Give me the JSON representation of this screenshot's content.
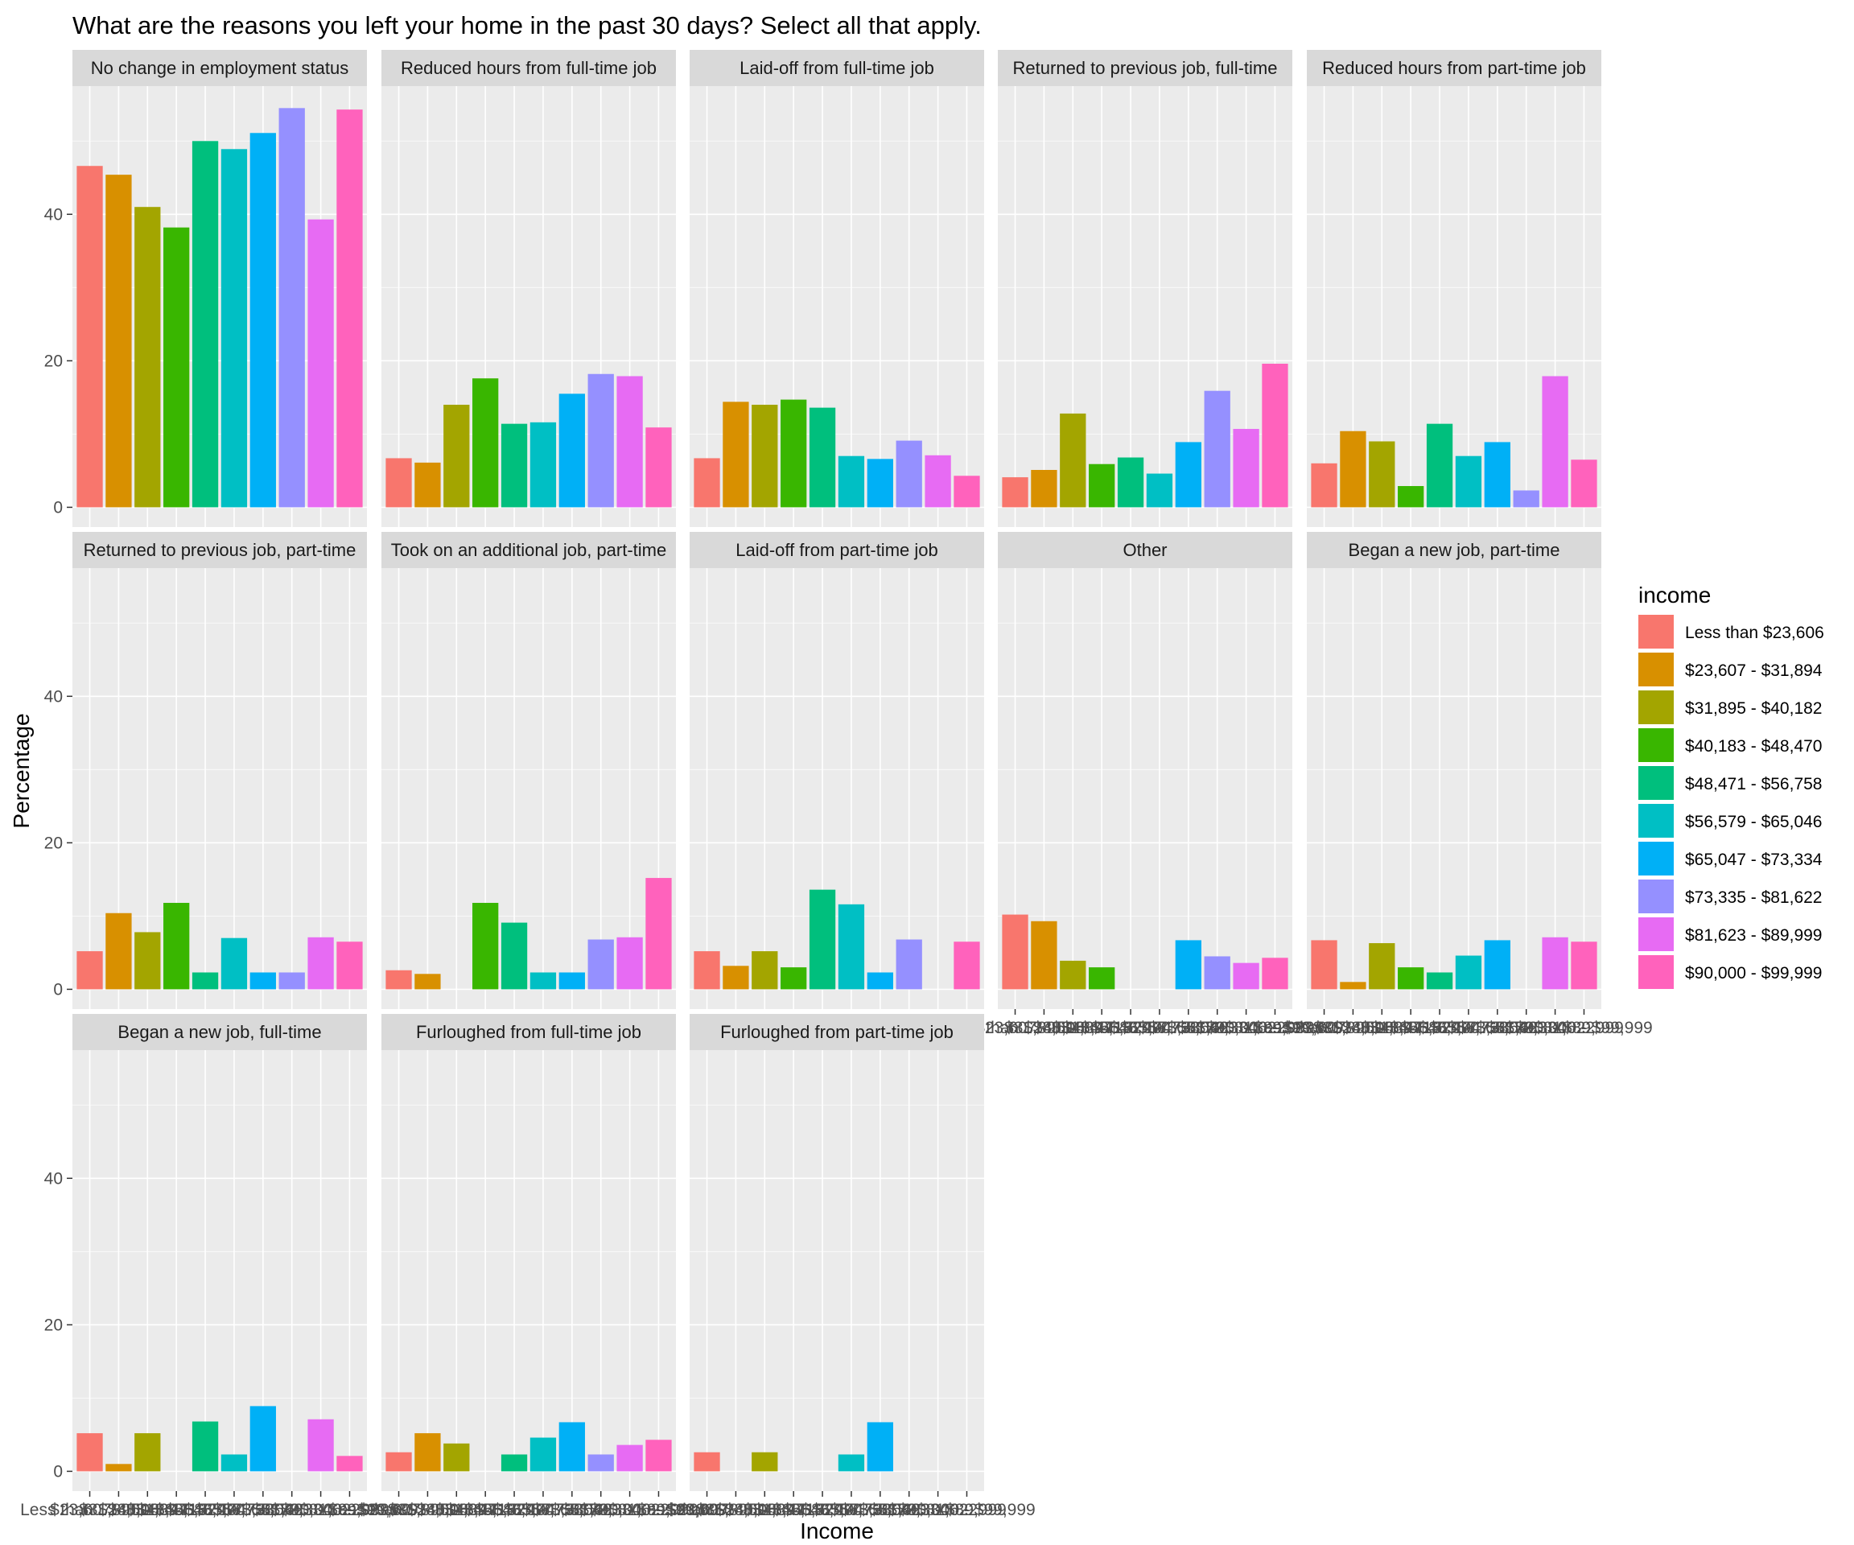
{
  "chart_data": {
    "type": "bar",
    "title": "What are the reasons you left your home in the past 30 days? Select all that apply.",
    "xlabel": "Income",
    "ylabel": "Percentage",
    "ylim": [
      -2.7,
      57.5
    ],
    "yticks": [
      0,
      20,
      40
    ],
    "legend_title": "income",
    "legend_position": "right",
    "categories": [
      "Less than $23,606",
      "$23,607 - $31,894",
      "$31,895 - $40,182",
      "$40,183 - $48,470",
      "$48,471 - $56,758",
      "$56,579 - $65,046",
      "$65,047 - $73,334",
      "$73,335 - $81,622",
      "$81,623 - $89,999",
      "$90,000 - $99,999"
    ],
    "colors": [
      "#F8766D",
      "#D89000",
      "#A3A500",
      "#39B600",
      "#00BF7D",
      "#00BFC4",
      "#00B0F6",
      "#9590FF",
      "#E76BF3",
      "#FF62BC"
    ],
    "panels": [
      {
        "name": "No change in employment status",
        "values": [
          46.6,
          45.4,
          41.0,
          38.2,
          50.0,
          48.9,
          51.1,
          54.5,
          39.3,
          54.3
        ]
      },
      {
        "name": "Reduced hours from full-time job",
        "values": [
          6.7,
          6.1,
          14.0,
          17.6,
          11.4,
          11.6,
          15.5,
          18.2,
          17.9,
          10.9
        ]
      },
      {
        "name": "Laid-off from full-time job",
        "values": [
          6.7,
          14.4,
          14.0,
          14.7,
          13.6,
          7.0,
          6.6,
          9.1,
          7.1,
          4.3
        ]
      },
      {
        "name": "Returned to previous job, full-time",
        "values": [
          4.1,
          5.1,
          12.8,
          5.9,
          6.8,
          4.6,
          8.9,
          15.9,
          10.7,
          19.6
        ]
      },
      {
        "name": "Reduced hours from part-time job",
        "values": [
          6.0,
          10.4,
          9.0,
          2.9,
          11.4,
          7.0,
          8.9,
          2.3,
          17.9,
          6.5
        ]
      },
      {
        "name": "Returned to previous job, part-time",
        "values": [
          5.2,
          10.4,
          7.8,
          11.8,
          2.3,
          7.0,
          2.3,
          2.3,
          7.1,
          6.5
        ]
      },
      {
        "name": "Took on an additional job, part-time",
        "values": [
          2.6,
          2.1,
          0,
          11.8,
          9.1,
          2.3,
          2.3,
          6.8,
          7.1,
          15.2
        ]
      },
      {
        "name": "Laid-off from part-time job",
        "values": [
          5.2,
          3.2,
          5.2,
          3.0,
          13.6,
          11.6,
          2.3,
          6.8,
          0,
          6.5
        ]
      },
      {
        "name": "Other",
        "values": [
          10.2,
          9.3,
          3.9,
          3.0,
          0,
          0,
          6.7,
          4.5,
          3.6,
          4.3
        ]
      },
      {
        "name": "Began a new job, part-time",
        "values": [
          6.7,
          1.0,
          6.3,
          3.0,
          2.3,
          4.6,
          6.7,
          0,
          7.1,
          6.5
        ]
      },
      {
        "name": "Began a new job, full-time",
        "values": [
          5.2,
          1.0,
          5.2,
          0,
          6.8,
          2.3,
          8.9,
          0,
          7.1,
          2.1
        ]
      },
      {
        "name": "Furloughed from full-time job",
        "values": [
          2.6,
          5.2,
          3.8,
          0,
          2.3,
          4.6,
          6.7,
          2.3,
          3.6,
          4.3
        ]
      },
      {
        "name": "Furloughed from part-time job",
        "values": [
          2.6,
          0,
          2.6,
          0,
          0,
          2.3,
          6.7,
          0,
          0,
          0
        ]
      }
    ],
    "x_tick_labels_shown_in_columns": [
      "Less than $23,606",
      "$23,607 - $31,894",
      "$31,895 - $40,182",
      "$40,183 - $48,470",
      "$48,471 - $56,758",
      "$56,579 - $65,046",
      "$65,047 - $73,334",
      "$73,335 - $81,622",
      "$81,623 - $89,999",
      "$90,000 - $99,999"
    ]
  }
}
